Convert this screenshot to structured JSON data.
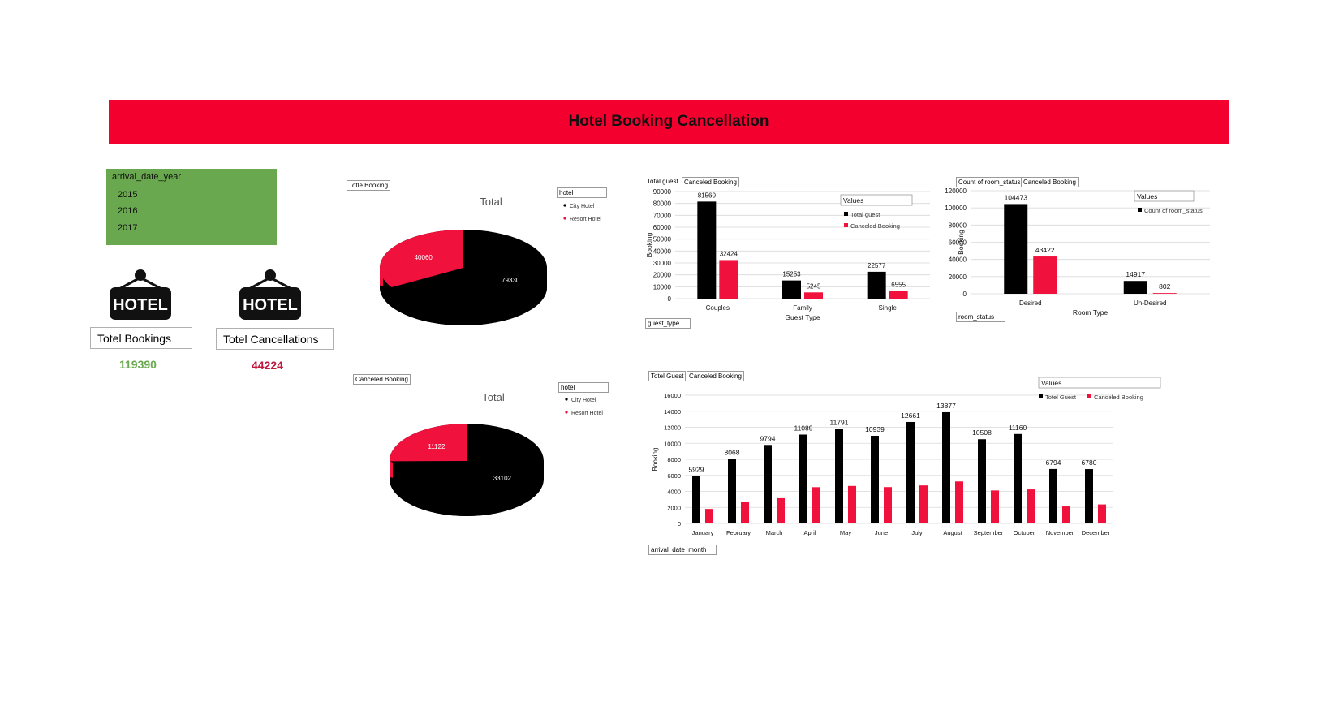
{
  "header": {
    "title": "Hotel Booking Cancellation"
  },
  "slicer": {
    "title": "arrival_date_year",
    "options": [
      "2015",
      "2016",
      "2017"
    ]
  },
  "kpis": {
    "icon_text": "HOTEL",
    "bookings_label": "Totel Bookings",
    "bookings_value": "119390",
    "cancellations_label": "Totel Cancellations",
    "cancellations_value": "44224"
  },
  "colors": {
    "accent": "#f4002f",
    "series_black": "#000000",
    "series_red": "#f0113d",
    "green": "#6aa84f",
    "kpi_green": "#6aa84f",
    "kpi_red": "#c0173f"
  },
  "chart_data": [
    {
      "type": "pie",
      "field_button": "Totle Booking",
      "title": "Total",
      "legend_title": "hotel",
      "legend": [
        "City Hotel",
        "Resort Hotel"
      ],
      "slices": [
        {
          "name": "City Hotel",
          "value": 79330,
          "color": "#000000"
        },
        {
          "name": "Resort Hotel",
          "value": 40060,
          "color": "#f0113d"
        }
      ]
    },
    {
      "type": "pie",
      "field_button": "Canceled Booking",
      "title": "Total",
      "legend_title": "hotel",
      "legend": [
        "City Hotel",
        "Resort Hotel"
      ],
      "slices": [
        {
          "name": "City Hotel",
          "value": 33102,
          "color": "#000000"
        },
        {
          "name": "Resort Hotel",
          "value": 11122,
          "color": "#f0113d"
        }
      ]
    },
    {
      "type": "bar",
      "field_buttons": [
        "Total guest",
        "Canceled Booking"
      ],
      "axis_button": "guest_type",
      "legend_title": "Values",
      "categories": [
        "Couples",
        "Family",
        "Single"
      ],
      "series": [
        {
          "name": "Total guest",
          "values": [
            81560,
            15253,
            22577
          ],
          "color": "#000000"
        },
        {
          "name": "Canceled Booking",
          "values": [
            32424,
            5245,
            6555
          ],
          "color": "#f0113d"
        }
      ],
      "xlabel": "Guest Type",
      "ylabel": "Booking",
      "ylim": [
        0,
        90000
      ],
      "yticks": [
        0,
        10000,
        20000,
        30000,
        40000,
        50000,
        60000,
        70000,
        80000,
        90000
      ]
    },
    {
      "type": "bar",
      "field_buttons": [
        "Count of room_status",
        "Canceled Booking"
      ],
      "axis_button": "room_status",
      "legend_title": "Values",
      "legend": [
        "Count of room_status"
      ],
      "categories": [
        "Desired",
        "Un-Desired"
      ],
      "series": [
        {
          "name": "Count of room_status",
          "values": [
            104473,
            14917
          ],
          "color": "#000000"
        },
        {
          "name": "Canceled Booking",
          "values": [
            43422,
            802
          ],
          "color": "#f0113d"
        }
      ],
      "xlabel": "Room Type",
      "ylabel": "Booking",
      "ylim": [
        0,
        120000
      ],
      "yticks": [
        0,
        20000,
        40000,
        60000,
        80000,
        100000,
        120000
      ]
    },
    {
      "type": "bar",
      "field_buttons": [
        "Totel Guest",
        "Canceled Booking"
      ],
      "axis_button": "arrival_date_month",
      "legend_title": "Values",
      "categories": [
        "January",
        "February",
        "March",
        "April",
        "May",
        "June",
        "July",
        "August",
        "September",
        "October",
        "November",
        "December"
      ],
      "series": [
        {
          "name": "Totel Guest",
          "values": [
            5929,
            8068,
            9794,
            11089,
            11791,
            10939,
            12661,
            13877,
            10508,
            11160,
            6794,
            6780
          ],
          "color": "#000000"
        },
        {
          "name": "Canceled Booking",
          "values": [
            1807,
            2696,
            3149,
            4524,
            4677,
            4535,
            4742,
            5239,
            4116,
            4246,
            2122,
            2371
          ],
          "color": "#f0113d"
        }
      ],
      "ylabel": "Booking",
      "ylim": [
        0,
        16000
      ],
      "yticks": [
        0,
        2000,
        4000,
        6000,
        8000,
        10000,
        12000,
        14000,
        16000
      ]
    }
  ]
}
